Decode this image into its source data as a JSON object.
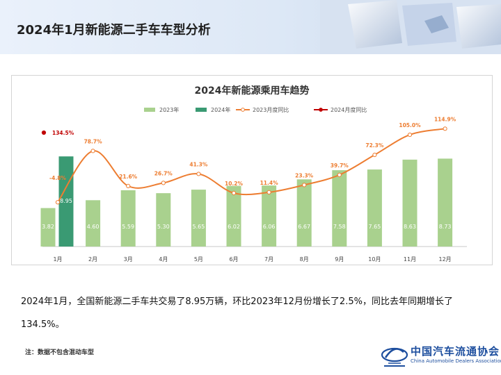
{
  "page": {
    "title": "2024年1月新能源二手车车型分析",
    "summary": "2024年1月，全国新能源二手车共交易了8.95万辆，环比2023年12月份增长了2.5%，同比去年同期增长了134.5%。",
    "note": "注：数据不包含混动车型",
    "logo_cn": "中国汽车流通协会",
    "logo_en": "China Automobile Dealers Association"
  },
  "colors": {
    "bar_2023": "#a9d18e",
    "bar_2024": "#3a9a73",
    "line_2023": "#ed7d31",
    "line_2024": "#c00000",
    "label_orange": "#ed7d31",
    "label_red": "#c00000"
  },
  "chart_data": {
    "type": "bar",
    "title": "2024年新能源乘用车趋势",
    "categories": [
      "1月",
      "2月",
      "3月",
      "4月",
      "5月",
      "6月",
      "7月",
      "8月",
      "9月",
      "10月",
      "11月",
      "12月"
    ],
    "series": [
      {
        "name": "2023年",
        "kind": "bar",
        "values": [
          3.82,
          4.6,
          5.59,
          5.3,
          5.65,
          6.02,
          6.06,
          6.67,
          7.58,
          7.65,
          8.63,
          8.73
        ]
      },
      {
        "name": "2024年",
        "kind": "bar",
        "values": [
          8.95,
          null,
          null,
          null,
          null,
          null,
          null,
          null,
          null,
          null,
          null,
          null
        ]
      },
      {
        "name": "2023月度同比",
        "kind": "line",
        "values": [
          -4.8,
          78.7,
          21.6,
          26.7,
          41.3,
          10.2,
          11.4,
          23.3,
          39.7,
          72.3,
          105.0,
          114.9
        ]
      },
      {
        "name": "2024月度同比",
        "kind": "line",
        "values": [
          134.5,
          null,
          null,
          null,
          null,
          null,
          null,
          null,
          null,
          null,
          null,
          null
        ]
      }
    ],
    "value_labels": [
      "3.82",
      "8.95",
      "4.60",
      "5.59",
      "5.30",
      "5.65",
      "6.02",
      "6.06",
      "6.67",
      "7.58",
      "7.65",
      "8.63",
      "8.73"
    ],
    "pct_labels": [
      "-4.8%",
      "78.7%",
      "21.6%",
      "26.7%",
      "41.3%",
      "10.2%",
      "11.4%",
      "23.3%",
      "39.7%",
      "72.3%",
      "105.0%",
      "114.9%"
    ],
    "pct_label_2024": "134.5%",
    "legend_position": "top",
    "grid": false
  }
}
